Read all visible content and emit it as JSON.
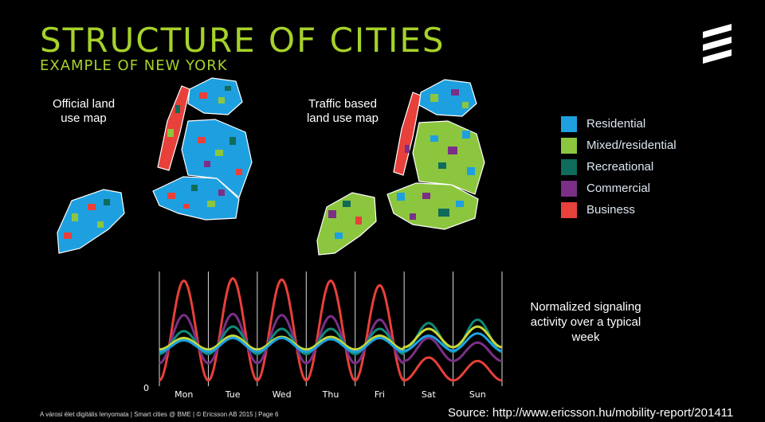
{
  "header": {
    "title": "STRUCTURE OF CITIES",
    "subtitle": "EXAMPLE OF NEW YORK"
  },
  "maps": {
    "official_label": "Official land\nuse map",
    "traffic_label": "Traffic based\nland use map"
  },
  "legend": {
    "items": [
      {
        "label": "Residential",
        "color": "#1ea0e0"
      },
      {
        "label": "Mixed/residential",
        "color": "#8cc63e"
      },
      {
        "label": "Recreational",
        "color": "#0f6b5a"
      },
      {
        "label": "Commercial",
        "color": "#7b2f86"
      },
      {
        "label": "Business",
        "color": "#e8403a"
      }
    ]
  },
  "signal_note": "Normalized signaling activity over a typical week",
  "chart_data": {
    "type": "line",
    "categories": [
      "Mon",
      "Tue",
      "Wed",
      "Thu",
      "Fri",
      "Sat",
      "Sun"
    ],
    "yzero_label": "0",
    "series": [
      {
        "color": "#e8403a",
        "peaks": [
          0.92,
          0.94,
          0.93,
          0.92,
          0.88,
          0.25,
          0.22
        ],
        "troughs": [
          0.05,
          0.05,
          0.05,
          0.05,
          0.05,
          0.05,
          0.05
        ]
      },
      {
        "color": "#7b2f86",
        "peaks": [
          0.62,
          0.63,
          0.62,
          0.61,
          0.58,
          0.42,
          0.38
        ],
        "troughs": [
          0.2,
          0.2,
          0.2,
          0.2,
          0.2,
          0.22,
          0.22
        ]
      },
      {
        "color": "#0f8a78",
        "peaks": [
          0.48,
          0.52,
          0.5,
          0.5,
          0.5,
          0.55,
          0.58
        ],
        "troughs": [
          0.28,
          0.28,
          0.28,
          0.28,
          0.28,
          0.3,
          0.3
        ]
      },
      {
        "color": "#c8d838",
        "peaks": [
          0.42,
          0.44,
          0.43,
          0.43,
          0.44,
          0.5,
          0.52
        ],
        "troughs": [
          0.32,
          0.32,
          0.32,
          0.32,
          0.32,
          0.34,
          0.34
        ]
      },
      {
        "color": "#1ea0e0",
        "peaks": [
          0.4,
          0.42,
          0.42,
          0.41,
          0.42,
          0.44,
          0.46
        ],
        "troughs": [
          0.3,
          0.3,
          0.3,
          0.3,
          0.3,
          0.31,
          0.31
        ]
      }
    ]
  },
  "footer": {
    "left": "A városi élet digitális lenyomata  |  Smart cities @ BME  |  © Ericsson AB 2015  |  Page 6",
    "source": "Source: http://www.ericsson.hu/mobility-report/201411"
  }
}
